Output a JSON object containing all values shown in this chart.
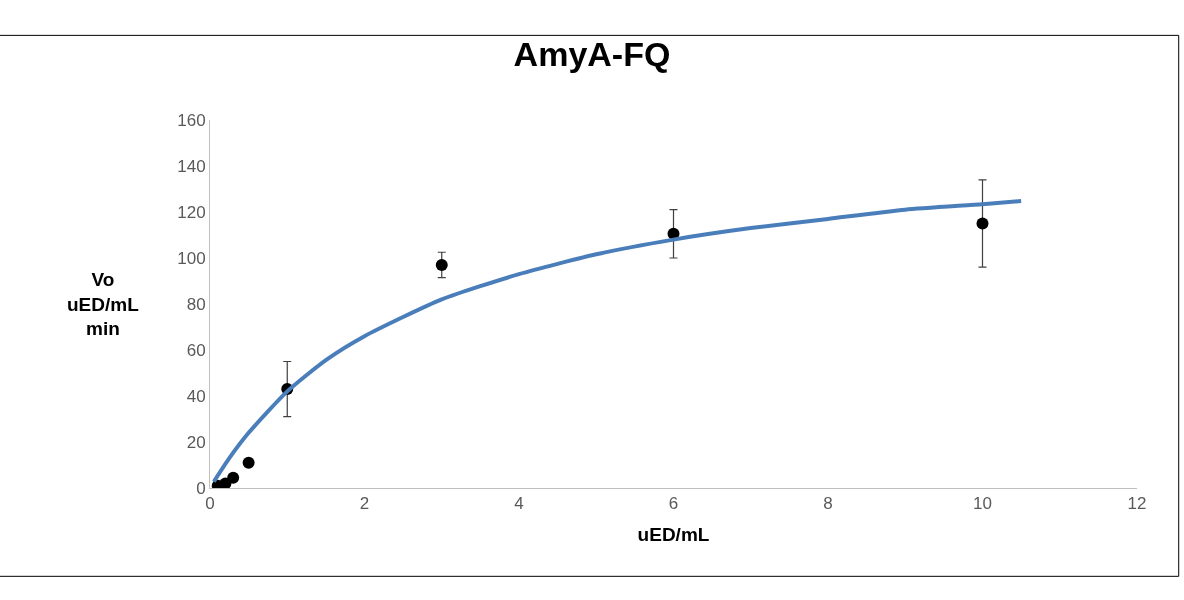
{
  "chart_data": {
    "type": "scatter",
    "title": "AmyA-FQ",
    "xlabel": "uED/mL",
    "ylabel": "Vo\nuED/mL\nmin",
    "xlim": [
      0,
      12
    ],
    "xticks": [
      0,
      2,
      4,
      6,
      8,
      10,
      12
    ],
    "ylim": [
      0,
      160
    ],
    "yticks": [
      0,
      20,
      40,
      60,
      80,
      100,
      120,
      140,
      160
    ],
    "grid": false,
    "series": [
      {
        "color": "#000000",
        "marker": "circle",
        "x": [
          0.1,
          0.2,
          0.3,
          0.5,
          1,
          3,
          6,
          10
        ],
        "values": [
          1,
          2,
          4.5,
          11,
          43,
          97,
          110.5,
          115
        ],
        "errors": [
          null,
          null,
          null,
          null,
          12,
          5.5,
          10.5,
          19
        ]
      },
      {
        "type": "line",
        "color": "#4a7ebb",
        "marker": "none",
        "line_style": "solid",
        "x": [
          0.05,
          0.25,
          0.5,
          1,
          1.5,
          2,
          3,
          4,
          5,
          6,
          7,
          8,
          9,
          10,
          10.5
        ],
        "values": [
          2.8,
          13,
          24,
          42,
          55.6,
          66,
          82,
          93,
          101.6,
          108,
          113,
          117,
          121,
          123.4,
          124.8
        ]
      }
    ]
  }
}
